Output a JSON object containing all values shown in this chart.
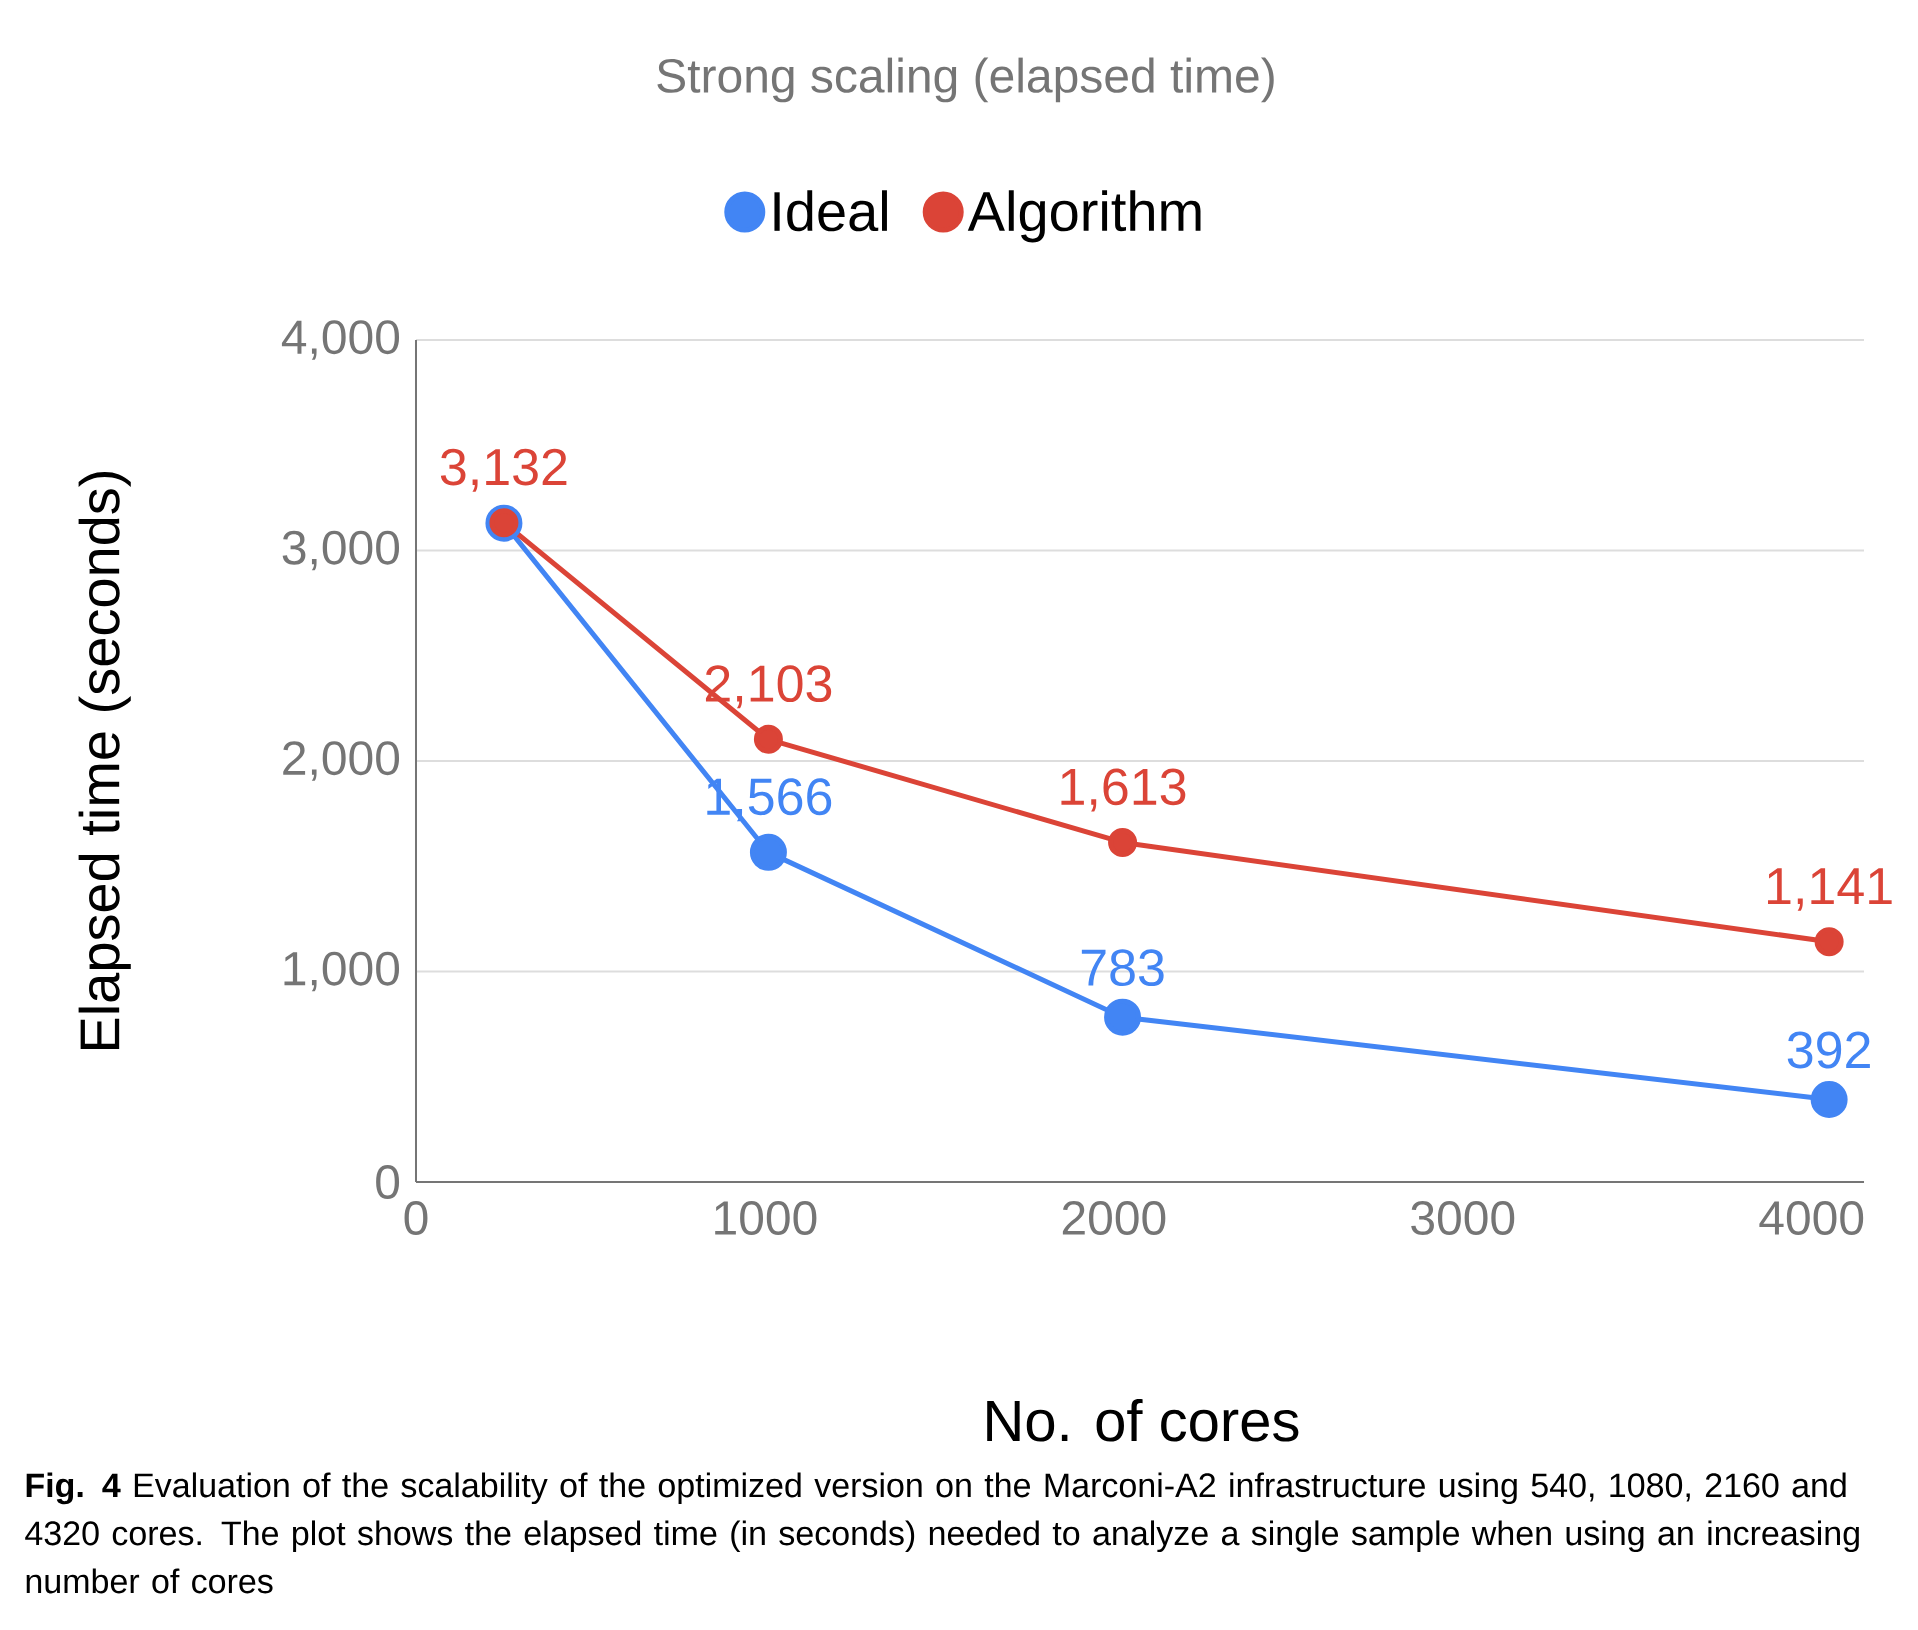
{
  "chart_data": {
    "type": "line",
    "title": "Strong scaling (elapsed time)",
    "xlabel": "No. of cores",
    "ylabel": "Elapsed time (seconds)",
    "series": [
      {
        "name": "Ideal",
        "color": "#4285f4",
        "x": [
          252,
          1010,
          2025,
          4050
        ],
        "values": [
          3130,
          1566,
          783,
          392
        ],
        "value_labels": [
          null,
          "1,566",
          "783",
          "392"
        ]
      },
      {
        "name": "Algorithm",
        "color": "#db4437",
        "x": [
          252,
          1010,
          2025,
          4050
        ],
        "values": [
          3132,
          2103,
          1613,
          1141
        ],
        "value_labels": [
          "3,132",
          "2,103",
          "1,613",
          "1,141"
        ]
      }
    ],
    "xlim": [
      0,
      4150
    ],
    "xticks": [
      0,
      1000,
      2000,
      3000,
      4000
    ],
    "ylim": [
      0,
      4000
    ],
    "yticks": [
      {
        "value": 0,
        "label": "0"
      },
      {
        "value": 1000,
        "label": "1,000"
      },
      {
        "value": 2000,
        "label": "2,000"
      },
      {
        "value": 3000,
        "label": "3,000"
      },
      {
        "value": 4000,
        "label": "4,000"
      }
    ],
    "grid": "y",
    "legend": "top",
    "marker": "circle",
    "line_style": "solid",
    "annotations": [
      "**Fig. 4** Evaluation of the scalability of the optimized version on the Marconi-A2 infrastructure using 540, 1080, 2160 and 4320 cores. The plot shows the elapsed time (in seconds) needed to analyze a single sample when using an increasing number of cores"
    ]
  }
}
